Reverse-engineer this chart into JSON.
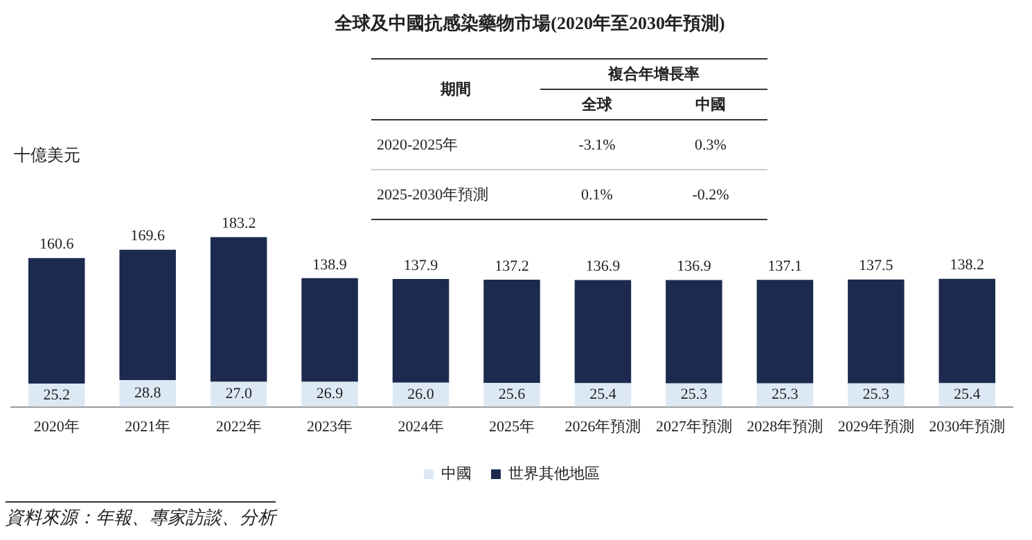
{
  "chart_data": {
    "type": "bar",
    "title": "全球及中國抗感染藥物市場(2020年至2030年預測)",
    "ylabel": "十億美元",
    "stacked": true,
    "legend": "bottom",
    "categories": [
      "2020年",
      "2021年",
      "2022年",
      "2023年",
      "2024年",
      "2025年",
      "2026年預測",
      "2027年預測",
      "2028年預測",
      "2029年預測",
      "2030年預測"
    ],
    "series": [
      {
        "name": "中國",
        "color": "#dce9f5",
        "values": [
          25.2,
          28.8,
          27.0,
          26.9,
          26.0,
          25.6,
          25.4,
          25.3,
          25.3,
          25.3,
          25.4
        ],
        "value_labels": [
          "25.2",
          "28.8",
          "27.0",
          "26.9",
          "26.0",
          "25.6",
          "25.4",
          "25.3",
          "25.3",
          "25.3",
          "25.4"
        ]
      },
      {
        "name": "世界其他地區",
        "color": "#1b2a4e",
        "values": [
          135.4,
          140.8,
          156.2,
          112.0,
          111.9,
          111.6,
          111.5,
          111.6,
          111.8,
          112.2,
          112.8
        ]
      }
    ],
    "totals": [
      "160.6",
      "169.6",
      "183.2",
      "138.9",
      "137.9",
      "137.2",
      "136.9",
      "136.9",
      "137.1",
      "137.5",
      "138.2"
    ],
    "annotations": [
      "期間",
      "複合年增長率",
      "全球",
      "中國",
      "2020-2025年",
      "-3.1%",
      "0.3%",
      "2025-2030年預測",
      "0.1%",
      "-0.2%",
      "資料來源：年報、專家訪談、分析"
    ]
  }
}
